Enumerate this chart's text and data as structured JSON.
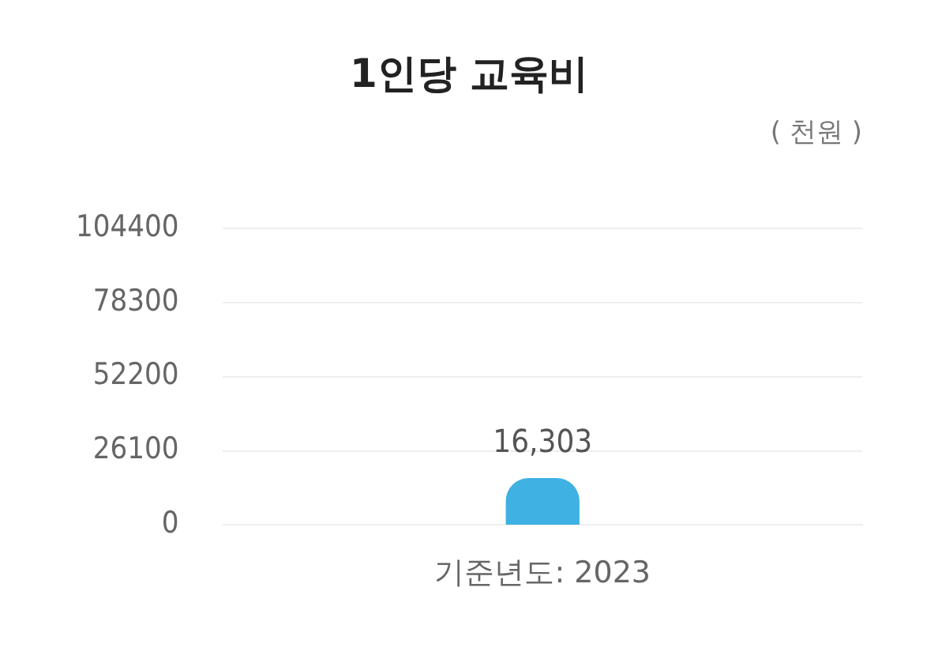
{
  "chart_data": {
    "type": "bar",
    "title": "1인당 교육비",
    "annotations": [
      "( 천원 )"
    ],
    "categories": [
      "기준년도: 2023"
    ],
    "values": [
      16303
    ],
    "value_labels": [
      "16,303"
    ],
    "color": "#3fb1e3",
    "ylim": [
      0,
      104400
    ],
    "yticks": [
      0,
      26100,
      52200,
      78300,
      104400
    ],
    "grid": "y"
  }
}
